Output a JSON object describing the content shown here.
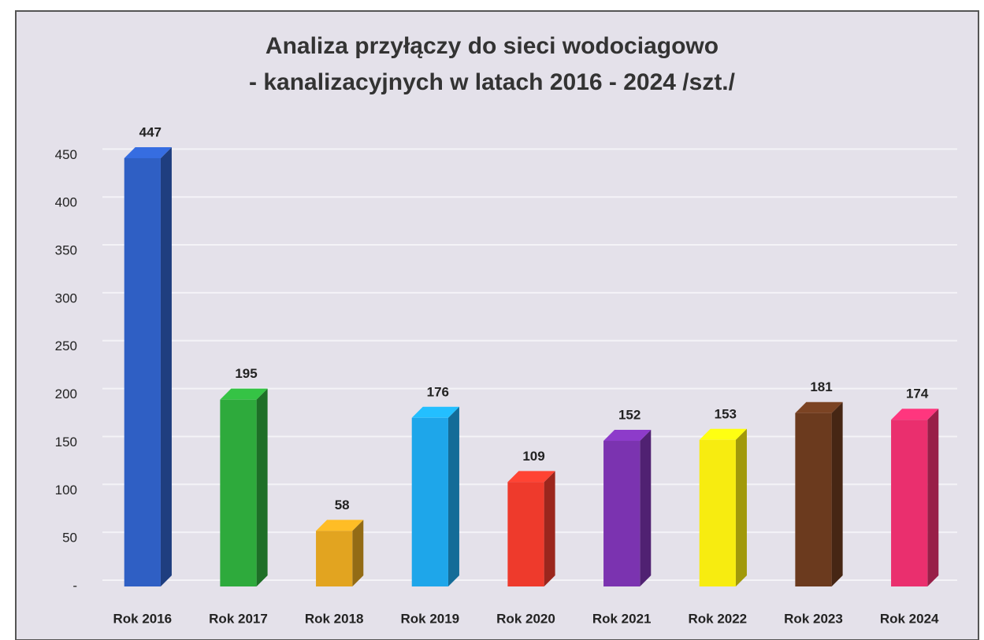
{
  "chart_data": {
    "type": "bar3d",
    "title": "Analiza przyłączy do sieci wodociagowo\n- kanalizacyjnych w latach 2016 - 2024 /szt./",
    "categories": [
      "Rok 2016",
      "Rok 2017",
      "Rok 2018",
      "Rok 2019",
      "Rok 2020",
      "Rok 2021",
      "Rok 2022",
      "Rok 2023",
      "Rok 2024"
    ],
    "values": [
      447,
      195,
      58,
      176,
      109,
      152,
      153,
      181,
      174
    ],
    "colors": [
      "#2f5fc4",
      "#2eaa3c",
      "#e2a420",
      "#1ea6ea",
      "#ee3a2c",
      "#7b33b0",
      "#f7ec10",
      "#6b3a1e",
      "#ea2f6e"
    ],
    "ylim": [
      0,
      470
    ],
    "yticks": [
      {
        "value": 0,
        "label": "-"
      },
      50,
      100,
      150,
      200,
      250,
      300,
      350,
      400,
      450
    ],
    "grid": true
  }
}
